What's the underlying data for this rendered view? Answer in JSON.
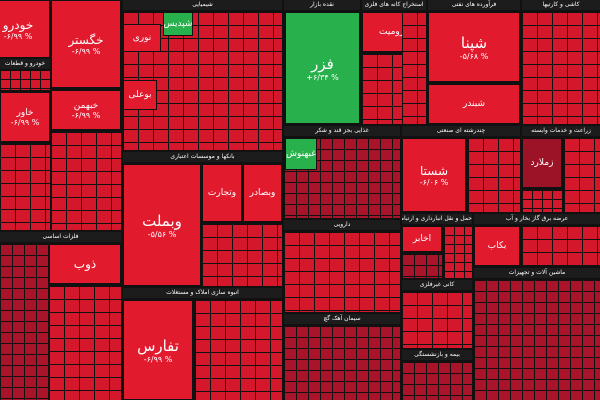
{
  "sectors": [
    {
      "title": "خودرو و قطعات"
    },
    {
      "title": "شیمیایی"
    },
    {
      "title": "بانکها و موسسات اعتباری"
    },
    {
      "title": "انبوه سازی املاک و مستغلات"
    },
    {
      "title": "فلزات اساسی"
    },
    {
      "title": "نقده بازار"
    },
    {
      "title": "استخراج کانه های فلزی"
    },
    {
      "title": "فرآورده های نفتی"
    },
    {
      "title": "کاشی و کارتیها"
    },
    {
      "title": "غذایی بجز قند و شکر"
    },
    {
      "title": "چندرشته ای صنعتی"
    },
    {
      "title": "زراعت و خدمات وابسته"
    },
    {
      "title": "دارویی"
    },
    {
      "title": "حمل و نقل انبارداری و ارتباطات"
    },
    {
      "title": "عرضه برق گاز بخار و آب"
    },
    {
      "title": "سیمان آهک گچ"
    },
    {
      "title": "کانی غیرفلزی"
    },
    {
      "title": "ماشین آلات و تجهیزات"
    },
    {
      "title": "بیمه و بازنشستگی"
    }
  ],
  "tiles": [
    {
      "name": "خودرو",
      "change": "-۶/۹۹ %"
    },
    {
      "name": "خگستر",
      "change": "-۶/۹۹ %"
    },
    {
      "name": "خاور",
      "change": "-۶/۹۹ %"
    },
    {
      "name": "خبهمن",
      "change": "-۶/۹۹ %"
    },
    {
      "name": "ذوب"
    },
    {
      "name": "وبملت",
      "change": "-۵/۵۶ %"
    },
    {
      "name": "وتجارت"
    },
    {
      "name": "وبصادر"
    },
    {
      "name": "تفارس",
      "change": "-۶/۹۹ %"
    },
    {
      "name": "فزر",
      "change": "+۶/۳۴ %"
    },
    {
      "name": "کرومیت"
    },
    {
      "name": "شپنا",
      "change": "-۵/۶۸ %"
    },
    {
      "name": "شبندر"
    },
    {
      "name": "شستا",
      "change": "-۶/۰۶ %"
    },
    {
      "name": "زملارد"
    },
    {
      "name": "نوری"
    },
    {
      "name": "شپدیس"
    },
    {
      "name": "بوعلی"
    },
    {
      "name": "غبهنوش"
    },
    {
      "name": "اخابر"
    },
    {
      "name": "بکاب"
    }
  ]
}
